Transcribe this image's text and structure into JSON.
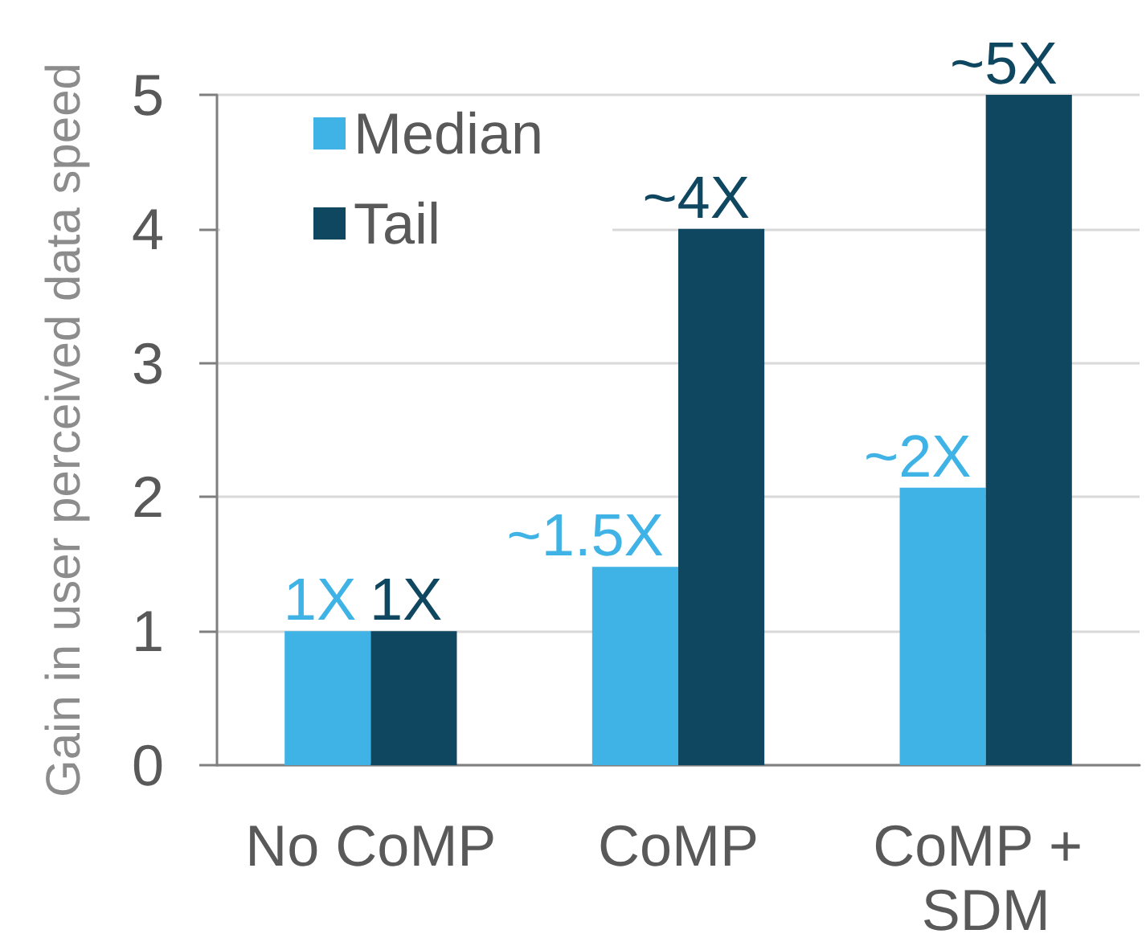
{
  "chart_data": {
    "type": "bar",
    "ylabel": "Gain in user perceived data speed",
    "categories": [
      "No CoMP",
      "CoMP",
      "CoMP + SDM"
    ],
    "series": [
      {
        "name": "Median",
        "color": "#3fb3e5",
        "values": [
          1,
          1.48,
          2.07
        ],
        "value_labels": [
          "1X",
          "~1.5X",
          "~2X"
        ]
      },
      {
        "name": "Tail",
        "color": "#0f4761",
        "values": [
          1,
          4,
          5
        ],
        "value_labels": [
          "1X",
          "~4X",
          "~5X"
        ]
      }
    ],
    "ylim": [
      0,
      5
    ],
    "yticks": [
      0,
      1,
      2,
      3,
      4,
      5
    ],
    "grid": "y",
    "legend": "top left"
  }
}
